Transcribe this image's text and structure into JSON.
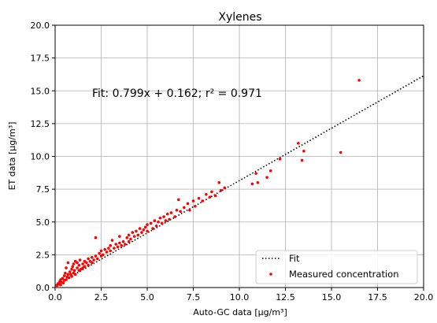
{
  "chart_data": {
    "type": "scatter",
    "title": "Xylenes",
    "xlabel": "Auto-GC data [μg/m³]",
    "ylabel": "ET data [μg/m³]",
    "xlim": [
      0,
      20
    ],
    "ylim": [
      0,
      20
    ],
    "xticks": [
      "0.0",
      "2.5",
      "5.0",
      "7.5",
      "10.0",
      "12.5",
      "15.0",
      "17.5",
      "20.0"
    ],
    "yticks": [
      "0.0",
      "2.5",
      "5.0",
      "7.5",
      "10.0",
      "12.5",
      "15.0",
      "17.5",
      "20.0"
    ],
    "grid": true,
    "legend_position": "bottom-right",
    "annotation": "Fit: 0.799x + 0.162; r² = 0.971",
    "fit": {
      "name": "Fit",
      "slope": 0.799,
      "intercept": 0.162,
      "style": "dotted",
      "color": "#000000"
    },
    "series": [
      {
        "name": "Measured concentration",
        "color": "#ff0000",
        "points": [
          [
            0.1,
            0.15
          ],
          [
            0.15,
            0.3
          ],
          [
            0.2,
            0.25
          ],
          [
            0.25,
            0.45
          ],
          [
            0.3,
            0.2
          ],
          [
            0.3,
            0.6
          ],
          [
            0.35,
            0.4
          ],
          [
            0.4,
            0.7
          ],
          [
            0.45,
            0.35
          ],
          [
            0.5,
            0.9
          ],
          [
            0.5,
            0.55
          ],
          [
            0.55,
            1.1
          ],
          [
            0.6,
            0.6
          ],
          [
            0.6,
            1.5
          ],
          [
            0.65,
            0.8
          ],
          [
            0.7,
            1.9
          ],
          [
            0.7,
            1.0
          ],
          [
            0.75,
            0.75
          ],
          [
            0.8,
            1.2
          ],
          [
            0.85,
            1.0
          ],
          [
            0.9,
            1.4
          ],
          [
            0.9,
            0.85
          ],
          [
            0.95,
            1.6
          ],
          [
            1.0,
            1.1
          ],
          [
            1.0,
            1.8
          ],
          [
            1.05,
            1.3
          ],
          [
            1.1,
            2.0
          ],
          [
            1.1,
            1.0
          ],
          [
            1.2,
            1.5
          ],
          [
            1.2,
            1.9
          ],
          [
            1.3,
            1.3
          ],
          [
            1.3,
            1.7
          ],
          [
            1.35,
            2.1
          ],
          [
            1.4,
            1.4
          ],
          [
            1.5,
            1.8
          ],
          [
            1.5,
            1.5
          ],
          [
            1.6,
            2.0
          ],
          [
            1.6,
            1.6
          ],
          [
            1.7,
            1.9
          ],
          [
            1.8,
            2.2
          ],
          [
            1.8,
            1.7
          ],
          [
            1.9,
            2.0
          ],
          [
            2.0,
            2.3
          ],
          [
            2.0,
            1.9
          ],
          [
            2.1,
            2.1
          ],
          [
            2.2,
            2.4
          ],
          [
            2.2,
            3.8
          ],
          [
            2.3,
            2.2
          ],
          [
            2.4,
            2.6
          ],
          [
            2.5,
            2.4
          ],
          [
            2.5,
            2.8
          ],
          [
            2.6,
            2.5
          ],
          [
            2.7,
            2.9
          ],
          [
            2.8,
            2.7
          ],
          [
            2.9,
            3.0
          ],
          [
            3.0,
            2.8
          ],
          [
            3.0,
            3.2
          ],
          [
            3.1,
            3.6
          ],
          [
            3.2,
            3.0
          ],
          [
            3.3,
            3.3
          ],
          [
            3.4,
            3.1
          ],
          [
            3.5,
            3.4
          ],
          [
            3.5,
            3.9
          ],
          [
            3.6,
            3.2
          ],
          [
            3.7,
            3.5
          ],
          [
            3.8,
            3.3
          ],
          [
            3.9,
            3.8
          ],
          [
            4.0,
            3.5
          ],
          [
            4.0,
            4.0
          ],
          [
            4.1,
            3.7
          ],
          [
            4.2,
            4.2
          ],
          [
            4.3,
            3.9
          ],
          [
            4.4,
            4.3
          ],
          [
            4.5,
            4.0
          ],
          [
            4.6,
            4.5
          ],
          [
            4.7,
            4.2
          ],
          [
            4.8,
            4.4
          ],
          [
            4.9,
            4.6
          ],
          [
            5.0,
            4.3
          ],
          [
            5.0,
            4.8
          ],
          [
            5.2,
            4.9
          ],
          [
            5.3,
            4.5
          ],
          [
            5.4,
            5.1
          ],
          [
            5.5,
            4.7
          ],
          [
            5.6,
            5.0
          ],
          [
            5.7,
            5.3
          ],
          [
            5.8,
            4.9
          ],
          [
            5.9,
            5.4
          ],
          [
            6.0,
            5.1
          ],
          [
            6.1,
            5.6
          ],
          [
            6.2,
            5.2
          ],
          [
            6.3,
            5.7
          ],
          [
            6.5,
            5.4
          ],
          [
            6.6,
            5.9
          ],
          [
            6.7,
            6.7
          ],
          [
            6.8,
            5.8
          ],
          [
            7.0,
            6.1
          ],
          [
            7.2,
            6.4
          ],
          [
            7.3,
            5.9
          ],
          [
            7.5,
            6.6
          ],
          [
            7.6,
            6.2
          ],
          [
            7.8,
            6.8
          ],
          [
            8.0,
            6.6
          ],
          [
            8.2,
            7.1
          ],
          [
            8.4,
            6.9
          ],
          [
            8.5,
            7.3
          ],
          [
            8.7,
            7.0
          ],
          [
            8.9,
            8.0
          ],
          [
            9.0,
            7.4
          ],
          [
            9.2,
            7.6
          ],
          [
            10.7,
            7.9
          ],
          [
            10.9,
            8.7
          ],
          [
            11.0,
            8.0
          ],
          [
            11.5,
            8.4
          ],
          [
            11.7,
            8.9
          ],
          [
            12.2,
            9.8
          ],
          [
            13.2,
            11.0
          ],
          [
            13.4,
            9.7
          ],
          [
            13.5,
            10.4
          ],
          [
            15.5,
            10.3
          ],
          [
            16.5,
            15.8
          ]
        ]
      }
    ]
  }
}
